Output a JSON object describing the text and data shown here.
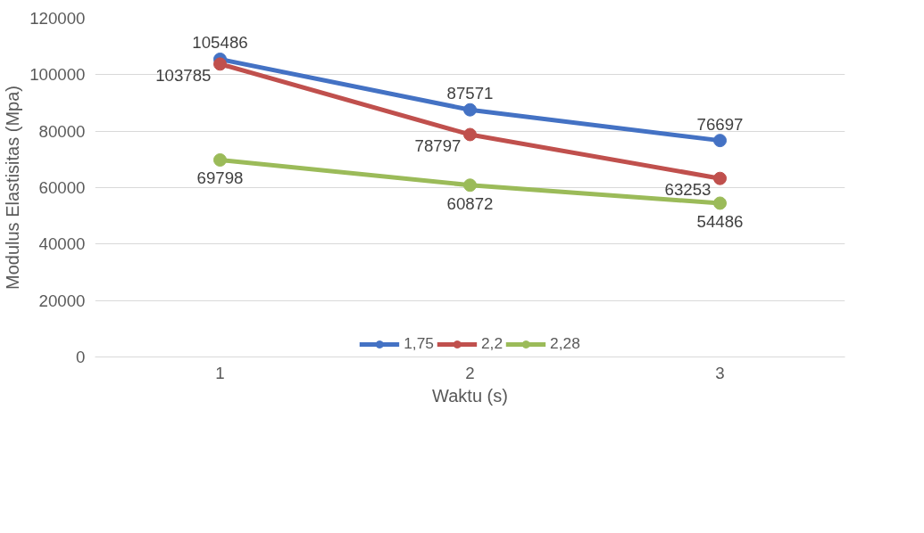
{
  "chart_data": {
    "type": "line",
    "xlabel": "Waktu (s)",
    "ylabel": "Modulus Elastisitas (Mpa)",
    "categories": [
      "1",
      "2",
      "3"
    ],
    "series": [
      {
        "name": "1,75",
        "color": "#4472c4",
        "values": [
          105486,
          87571,
          76697
        ]
      },
      {
        "name": "2,2",
        "color": "#c0504d",
        "values": [
          103785,
          78797,
          63253
        ]
      },
      {
        "name": "2,28",
        "color": "#9bbb59",
        "values": [
          69798,
          60872,
          54486
        ]
      }
    ],
    "ylim": [
      0,
      120000
    ],
    "yticks": [
      0,
      20000,
      40000,
      60000,
      80000,
      100000,
      120000
    ],
    "grid": "y",
    "legend": "bottom",
    "marker": "circle",
    "line_style": "solid",
    "data_labels": true
  }
}
